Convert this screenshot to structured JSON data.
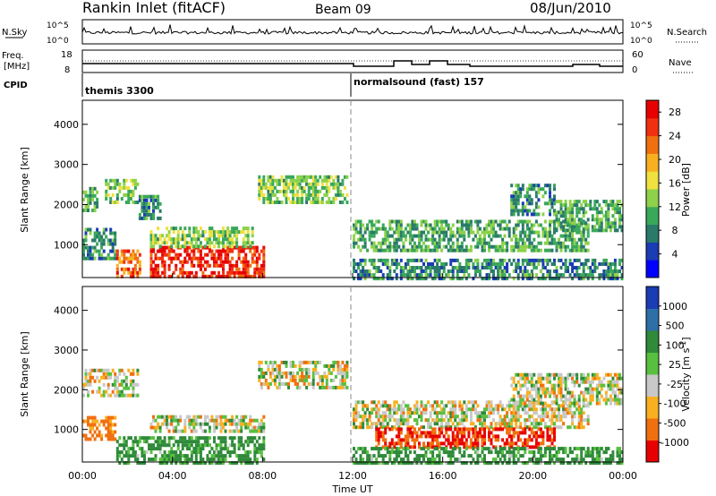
{
  "header": {
    "station": "Rankin Inlet (fitACF)",
    "beam": "Beam 09",
    "date": "08/Jun/2010"
  },
  "nsky_panel": {
    "label": "N.Sky",
    "y_top_label": "10^5",
    "y_bottom_label": "10^0",
    "right_label": "N.Search",
    "right_top_label": "10^5",
    "right_bottom_label": "10^0"
  },
  "freq_panel": {
    "label_line1": "Freq.",
    "label_line2": "[MHz]",
    "left_ticks": [
      "18",
      "8"
    ],
    "right_ticks": [
      "60",
      "0"
    ],
    "right_label": "Nave"
  },
  "cpid": {
    "label": "CPID",
    "segments": [
      {
        "name": "themis 3300",
        "start_hour": 0
      },
      {
        "name": "normalsound (fast) 157",
        "start_hour": 12
      }
    ]
  },
  "chart_data": [
    {
      "type": "heatmap",
      "name": "power",
      "ylabel": "Slant Range [km]",
      "yticks": [
        1000,
        2000,
        3000,
        4000
      ],
      "ylim": [
        180,
        4600
      ],
      "colorbar_label": "Power [dB]",
      "colorbar_ticks": [
        4,
        8,
        12,
        16,
        20,
        24,
        28
      ],
      "colorbar_colors": [
        "#0000ff",
        "#1a3cb4",
        "#2a7a6a",
        "#3aa85a",
        "#8ed14a",
        "#f0e040",
        "#f8b020",
        "#f07010",
        "#f03010",
        "#e80000"
      ],
      "regions": [
        {
          "t0": 0.0,
          "t1": 0.7,
          "r0": 1900,
          "r1": 2500,
          "value": 12
        },
        {
          "t0": 1.0,
          "t1": 2.5,
          "r0": 2100,
          "r1": 2700,
          "value": 14
        },
        {
          "t0": 2.5,
          "t1": 3.5,
          "r0": 1700,
          "r1": 2300,
          "value": 10
        },
        {
          "t0": 0.0,
          "t1": 1.5,
          "r0": 700,
          "r1": 1500,
          "value": 10
        },
        {
          "t0": 1.5,
          "t1": 2.6,
          "r0": 250,
          "r1": 900,
          "value": 24
        },
        {
          "t0": 3.0,
          "t1": 8.0,
          "r0": 250,
          "r1": 1000,
          "value": 27
        },
        {
          "t0": 3.0,
          "t1": 7.5,
          "r0": 1000,
          "r1": 1500,
          "value": 14
        },
        {
          "t0": 7.8,
          "t1": 11.7,
          "r0": 2100,
          "r1": 2800,
          "value": 14
        },
        {
          "t0": 12.0,
          "t1": 22.5,
          "r0": 900,
          "r1": 1700,
          "value": 12
        },
        {
          "t0": 12.0,
          "t1": 24.0,
          "r0": 200,
          "r1": 700,
          "value": 10
        },
        {
          "t0": 19.0,
          "t1": 21.0,
          "r0": 1800,
          "r1": 2600,
          "value": 10
        },
        {
          "t0": 21.0,
          "t1": 24.0,
          "r0": 1400,
          "r1": 2200,
          "value": 12
        }
      ]
    },
    {
      "type": "heatmap",
      "name": "velocity",
      "ylabel": "Slant Range [km]",
      "yticks": [
        1000,
        2000,
        3000,
        4000
      ],
      "ylim": [
        180,
        4600
      ],
      "colorbar_label": "Velocity [m s^-1]",
      "colorbar_ticks": [
        1000,
        500,
        100,
        25,
        -25,
        -100,
        -500,
        -1000
      ],
      "colorbar_colors": [
        "#1a3cb4",
        "#2f6fa8",
        "#2f8a3a",
        "#58c040",
        "#c8c8c8",
        "#f8b020",
        "#f07010",
        "#e80000"
      ],
      "regions": [
        {
          "t0": 0.0,
          "t1": 2.5,
          "r0": 1900,
          "r1": 2600,
          "value": 0
        },
        {
          "t0": 0.0,
          "t1": 1.5,
          "r0": 800,
          "r1": 1400,
          "value": -100
        },
        {
          "t0": 1.5,
          "t1": 8.0,
          "r0": 200,
          "r1": 900,
          "value": 100
        },
        {
          "t0": 3.0,
          "t1": 8.0,
          "r0": 1000,
          "r1": 1400,
          "value": 0
        },
        {
          "t0": 7.8,
          "t1": 11.7,
          "r0": 2100,
          "r1": 2800,
          "value": 0
        },
        {
          "t0": 12.0,
          "t1": 22.5,
          "r0": 1100,
          "r1": 1800,
          "value": 0
        },
        {
          "t0": 13.0,
          "t1": 21.0,
          "r0": 600,
          "r1": 1100,
          "value": -300
        },
        {
          "t0": 12.0,
          "t1": 24.0,
          "r0": 200,
          "r1": 600,
          "value": 100
        },
        {
          "t0": 19.0,
          "t1": 24.0,
          "r0": 1700,
          "r1": 2500,
          "value": 0
        }
      ]
    }
  ],
  "x_axis": {
    "label": "Time UT",
    "ticks": [
      "00:00",
      "04:00",
      "08:00",
      "12:00",
      "16:00",
      "20:00",
      "00:00"
    ],
    "range_hours": [
      0,
      24
    ]
  }
}
